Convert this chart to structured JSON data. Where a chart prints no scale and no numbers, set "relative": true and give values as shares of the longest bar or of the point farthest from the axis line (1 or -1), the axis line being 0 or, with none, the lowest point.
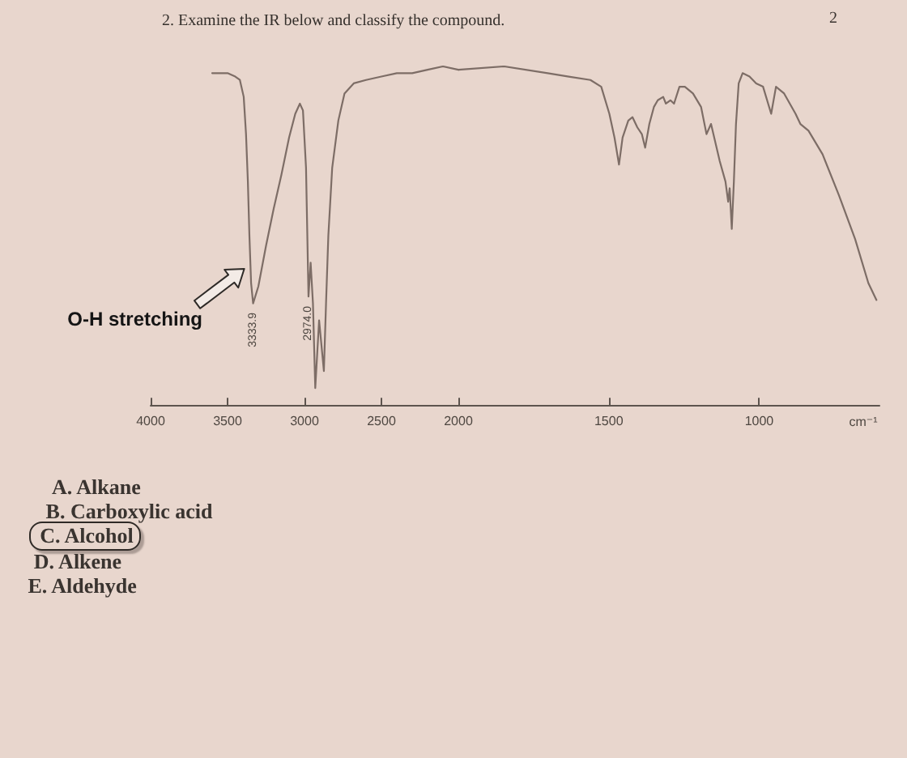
{
  "chart_data": [
    {
      "type": "line",
      "title": "2. Examine the IR below and classify the compound.",
      "relative": true,
      "color": "#7d6d66",
      "x": [
        3600,
        3500,
        3450,
        3420,
        3395,
        3380,
        3368,
        3358,
        3347,
        3333.9,
        3300,
        3250,
        3200,
        3150,
        3100,
        3060,
        3030,
        3010,
        2990,
        2974,
        2960,
        2945,
        2930,
        2905,
        2874,
        2860,
        2845,
        2820,
        2780,
        2740,
        2680,
        2600,
        2500,
        2400,
        2300,
        2200,
        2100,
        2000
      ],
      "values": [
        0.98,
        0.98,
        0.97,
        0.96,
        0.91,
        0.8,
        0.66,
        0.5,
        0.36,
        0.3,
        0.35,
        0.47,
        0.58,
        0.68,
        0.79,
        0.86,
        0.89,
        0.87,
        0.7,
        0.32,
        0.42,
        0.3,
        0.05,
        0.25,
        0.1,
        0.3,
        0.5,
        0.7,
        0.84,
        0.92,
        0.95,
        0.96,
        0.97,
        0.98,
        0.98,
        0.99,
        1.0,
        0.99
      ],
      "xlim": [
        4000,
        2000
      ],
      "xticks": [
        4000,
        3500,
        3000,
        2500,
        2000
      ],
      "annotations": [
        "O-H stretching",
        {
          "text": "3333.9",
          "x": 3333.9,
          "y": 0.3
        },
        {
          "text": "2974.0",
          "x": 2974,
          "y": 0.32
        },
        "A. Alkane",
        "B. Carboxylic acid",
        "C. Alcohol",
        "D. Alkene",
        "E. Aldehyde"
      ]
    },
    {
      "type": "line",
      "relative": true,
      "color": "#7d6d66",
      "x": [
        2000,
        1848,
        1703,
        1633,
        1561,
        1525,
        1498,
        1481,
        1465.9,
        1454,
        1435,
        1421,
        1405,
        1390,
        1379,
        1365,
        1350,
        1337,
        1319,
        1310,
        1295,
        1283,
        1265,
        1247,
        1220,
        1193,
        1175,
        1160,
        1131,
        1112,
        1103,
        1098,
        1091,
        1084,
        1077,
        1068,
        1055,
        1032,
        1010,
        987,
        960,
        944,
        917,
        879,
        863,
        836,
        789,
        735,
        681,
        637,
        610
      ],
      "values": [
        0.99,
        1.0,
        0.98,
        0.97,
        0.96,
        0.94,
        0.86,
        0.79,
        0.71,
        0.79,
        0.84,
        0.85,
        0.82,
        0.8,
        0.76,
        0.83,
        0.88,
        0.9,
        0.91,
        0.89,
        0.9,
        0.89,
        0.94,
        0.94,
        0.92,
        0.88,
        0.8,
        0.83,
        0.72,
        0.66,
        0.6,
        0.64,
        0.52,
        0.66,
        0.83,
        0.95,
        0.98,
        0.97,
        0.95,
        0.94,
        0.86,
        0.94,
        0.92,
        0.86,
        0.83,
        0.81,
        0.74,
        0.62,
        0.49,
        0.36,
        0.31
      ],
      "xlim": [
        2000,
        600
      ],
      "xticks": [
        1500,
        1000
      ],
      "xlabel": "cm⁻¹",
      "annotations": [
        "2"
      ]
    }
  ]
}
